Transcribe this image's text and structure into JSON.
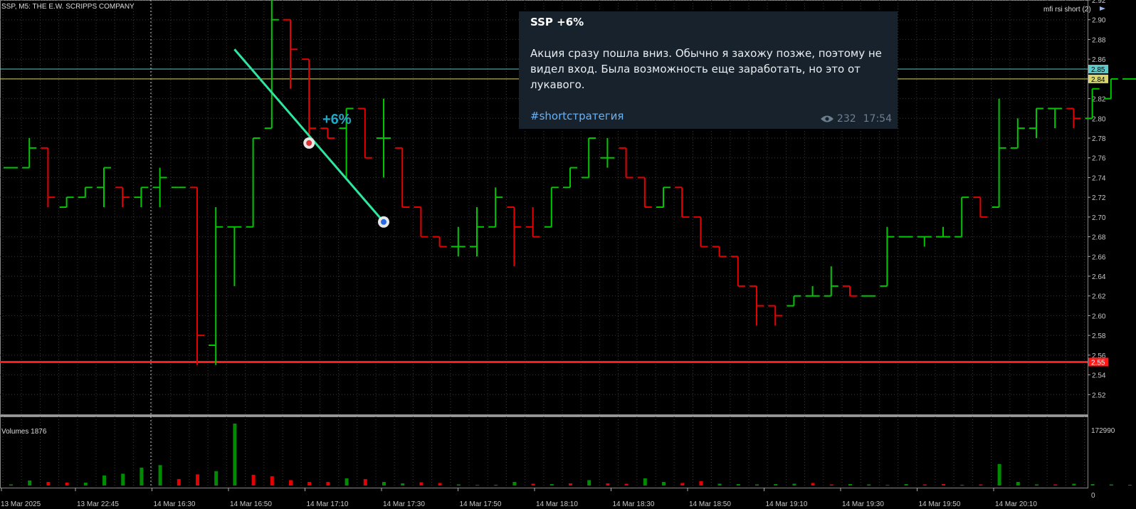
{
  "window": {
    "symbol_label": "SSP, M5:  THE E.W. SCRIPPS COMPANY",
    "indicator_label": "mfi rsi short (2)",
    "volume_label": "Volumes 1876"
  },
  "telegram_post": {
    "title": "SSP +6%",
    "body": "Акция сразу пошла вниз. Обычно я захожу позже, поэтому не видел вход. Была возможность еще заработать, но это от лукавого.",
    "hashtag": "#shortстратегия",
    "views": "232",
    "time": "17:54"
  },
  "chart_annotation": "+6%",
  "colors": {
    "background": "#000000",
    "grid": "#3a3a3a",
    "up_bar": "#00c800",
    "down_bar": "#e60000",
    "trendline": "#2ee6a0",
    "line_cyan": "#5fc8c8",
    "line_yellow": "#d7d770",
    "line_red": "#ff1a1a",
    "axis_text": "#c8c8c8"
  },
  "chart_data": {
    "type": "ohlc",
    "timeframe": "M5",
    "ylim": [
      2.5,
      2.92
    ],
    "yticks": [
      2.52,
      2.54,
      2.56,
      2.58,
      2.6,
      2.62,
      2.64,
      2.66,
      2.68,
      2.7,
      2.72,
      2.74,
      2.76,
      2.78,
      2.8,
      2.82,
      2.84,
      2.86,
      2.88,
      2.9,
      2.92
    ],
    "xticks": [
      "13 Mar 2025",
      "13 Mar 22:45",
      "14 Mar 16:30",
      "14 Mar 16:50",
      "14 Mar 17:10",
      "14 Mar 17:30",
      "14 Mar 17:50",
      "14 Mar 18:10",
      "14 Mar 18:30",
      "14 Mar 18:50",
      "14 Mar 19:10",
      "14 Mar 19:30",
      "14 Mar 19:50",
      "14 Mar 20:10"
    ],
    "price_labels": [
      {
        "value": 2.85,
        "text": "2.85",
        "color": "cyan"
      },
      {
        "value": 2.84,
        "text": "2.84",
        "color": "yellow"
      },
      {
        "value": 2.553,
        "text": "2.55",
        "color": "red"
      }
    ],
    "bars": [
      {
        "o": 2.75,
        "h": 2.75,
        "l": 2.75,
        "c": 2.75
      },
      {
        "o": 2.75,
        "h": 2.78,
        "l": 2.75,
        "c": 2.77
      },
      {
        "o": 2.77,
        "h": 2.77,
        "l": 2.71,
        "c": 2.72
      },
      {
        "o": 2.71,
        "h": 2.72,
        "l": 2.71,
        "c": 2.72
      },
      {
        "o": 2.72,
        "h": 2.73,
        "l": 2.72,
        "c": 2.73
      },
      {
        "o": 2.73,
        "h": 2.75,
        "l": 2.71,
        "c": 2.75
      },
      {
        "o": 2.73,
        "h": 2.73,
        "l": 2.71,
        "c": 2.72
      },
      {
        "o": 2.72,
        "h": 2.73,
        "l": 2.71,
        "c": 2.73
      },
      {
        "o": 2.73,
        "h": 2.75,
        "l": 2.71,
        "c": 2.74
      },
      {
        "o": 2.73,
        "h": 2.73,
        "l": 2.73,
        "c": 2.73
      },
      {
        "o": 2.73,
        "h": 2.73,
        "l": 2.55,
        "c": 2.58
      },
      {
        "o": 2.57,
        "h": 2.71,
        "l": 2.55,
        "c": 2.69
      },
      {
        "o": 2.69,
        "h": 2.69,
        "l": 2.63,
        "c": 2.69
      },
      {
        "o": 2.69,
        "h": 2.78,
        "l": 2.69,
        "c": 2.78
      },
      {
        "o": 2.79,
        "h": 2.92,
        "l": 2.79,
        "c": 2.9
      },
      {
        "o": 2.9,
        "h": 2.9,
        "l": 2.83,
        "c": 2.87
      },
      {
        "o": 2.86,
        "h": 2.86,
        "l": 2.77,
        "c": 2.79
      },
      {
        "o": 2.79,
        "h": 2.79,
        "l": 2.78,
        "c": 2.78
      },
      {
        "o": 2.79,
        "h": 2.81,
        "l": 2.74,
        "c": 2.81
      },
      {
        "o": 2.81,
        "h": 2.81,
        "l": 2.76,
        "c": 2.76
      },
      {
        "o": 2.78,
        "h": 2.82,
        "l": 2.74,
        "c": 2.78
      },
      {
        "o": 2.77,
        "h": 2.77,
        "l": 2.71,
        "c": 2.71
      },
      {
        "o": 2.71,
        "h": 2.71,
        "l": 2.68,
        "c": 2.68
      },
      {
        "o": 2.68,
        "h": 2.68,
        "l": 2.67,
        "c": 2.67
      },
      {
        "o": 2.67,
        "h": 2.69,
        "l": 2.66,
        "c": 2.67
      },
      {
        "o": 2.67,
        "h": 2.71,
        "l": 2.66,
        "c": 2.69
      },
      {
        "o": 2.69,
        "h": 2.73,
        "l": 2.69,
        "c": 2.72
      },
      {
        "o": 2.71,
        "h": 2.71,
        "l": 2.65,
        "c": 2.69
      },
      {
        "o": 2.69,
        "h": 2.71,
        "l": 2.68,
        "c": 2.68
      },
      {
        "o": 2.69,
        "h": 2.73,
        "l": 2.69,
        "c": 2.73
      },
      {
        "o": 2.73,
        "h": 2.75,
        "l": 2.73,
        "c": 2.75
      },
      {
        "o": 2.74,
        "h": 2.78,
        "l": 2.74,
        "c": 2.78
      },
      {
        "o": 2.76,
        "h": 2.78,
        "l": 2.75,
        "c": 2.76
      },
      {
        "o": 2.77,
        "h": 2.77,
        "l": 2.74,
        "c": 2.74
      },
      {
        "o": 2.74,
        "h": 2.74,
        "l": 2.71,
        "c": 2.71
      },
      {
        "o": 2.71,
        "h": 2.73,
        "l": 2.71,
        "c": 2.73
      },
      {
        "o": 2.73,
        "h": 2.73,
        "l": 2.7,
        "c": 2.7
      },
      {
        "o": 2.7,
        "h": 2.7,
        "l": 2.67,
        "c": 2.67
      },
      {
        "o": 2.67,
        "h": 2.67,
        "l": 2.66,
        "c": 2.66
      },
      {
        "o": 2.66,
        "h": 2.66,
        "l": 2.63,
        "c": 2.63
      },
      {
        "o": 2.63,
        "h": 2.63,
        "l": 2.59,
        "c": 2.61
      },
      {
        "o": 2.61,
        "h": 2.61,
        "l": 2.59,
        "c": 2.6
      },
      {
        "o": 2.61,
        "h": 2.62,
        "l": 2.61,
        "c": 2.62
      },
      {
        "o": 2.62,
        "h": 2.63,
        "l": 2.62,
        "c": 2.62
      },
      {
        "o": 2.62,
        "h": 2.65,
        "l": 2.62,
        "c": 2.63
      },
      {
        "o": 2.63,
        "h": 2.63,
        "l": 2.62,
        "c": 2.62
      },
      {
        "o": 2.62,
        "h": 2.62,
        "l": 2.62,
        "c": 2.62
      },
      {
        "o": 2.63,
        "h": 2.69,
        "l": 2.63,
        "c": 2.68
      },
      {
        "o": 2.68,
        "h": 2.68,
        "l": 2.68,
        "c": 2.68
      },
      {
        "o": 2.68,
        "h": 2.68,
        "l": 2.67,
        "c": 2.68
      },
      {
        "o": 2.68,
        "h": 2.69,
        "l": 2.68,
        "c": 2.68
      },
      {
        "o": 2.68,
        "h": 2.72,
        "l": 2.68,
        "c": 2.72
      },
      {
        "o": 2.72,
        "h": 2.72,
        "l": 2.7,
        "c": 2.7
      },
      {
        "o": 2.71,
        "h": 2.82,
        "l": 2.71,
        "c": 2.77
      },
      {
        "o": 2.77,
        "h": 2.8,
        "l": 2.77,
        "c": 2.79
      },
      {
        "o": 2.79,
        "h": 2.81,
        "l": 2.78,
        "c": 2.81
      },
      {
        "o": 2.81,
        "h": 2.81,
        "l": 2.79,
        "c": 2.81
      },
      {
        "o": 2.81,
        "h": 2.81,
        "l": 2.79,
        "c": 2.8
      },
      {
        "o": 2.8,
        "h": 2.83,
        "l": 2.8,
        "c": 2.83
      },
      {
        "o": 2.82,
        "h": 2.84,
        "l": 2.82,
        "c": 2.84
      },
      {
        "o": 2.84,
        "h": 2.84,
        "l": 2.84,
        "c": 2.84
      }
    ],
    "volumes": [
      {
        "v": 3000,
        "up": true
      },
      {
        "v": 14000,
        "up": true
      },
      {
        "v": 10000,
        "up": false
      },
      {
        "v": 8000,
        "up": false
      },
      {
        "v": 8000,
        "up": true
      },
      {
        "v": 28000,
        "up": true
      },
      {
        "v": 33000,
        "up": true
      },
      {
        "v": 50000,
        "up": true
      },
      {
        "v": 57000,
        "up": true
      },
      {
        "v": 18000,
        "up": false
      },
      {
        "v": 31000,
        "up": false
      },
      {
        "v": 40000,
        "up": true
      },
      {
        "v": 172990,
        "up": true
      },
      {
        "v": 30000,
        "up": false
      },
      {
        "v": 26000,
        "up": false
      },
      {
        "v": 15000,
        "up": false
      },
      {
        "v": 10000,
        "up": false
      },
      {
        "v": 10000,
        "up": false
      },
      {
        "v": 20000,
        "up": true
      },
      {
        "v": 18000,
        "up": false
      },
      {
        "v": 10000,
        "up": true
      },
      {
        "v": 6000,
        "up": true
      },
      {
        "v": 9000,
        "up": false
      },
      {
        "v": 7000,
        "up": false
      },
      {
        "v": 3000,
        "up": true
      },
      {
        "v": 2000,
        "up": false
      },
      {
        "v": 2000,
        "up": true
      },
      {
        "v": 10000,
        "up": true
      },
      {
        "v": 5000,
        "up": false
      },
      {
        "v": 4000,
        "up": true
      },
      {
        "v": 6000,
        "up": false
      },
      {
        "v": 15000,
        "up": true
      },
      {
        "v": 6000,
        "up": false
      },
      {
        "v": 5000,
        "up": false
      },
      {
        "v": 20000,
        "up": true
      },
      {
        "v": 10000,
        "up": true
      },
      {
        "v": 7000,
        "up": false
      },
      {
        "v": 12000,
        "up": false
      },
      {
        "v": 5000,
        "up": true
      },
      {
        "v": 4000,
        "up": true
      },
      {
        "v": 3000,
        "up": true
      },
      {
        "v": 4000,
        "up": true
      },
      {
        "v": 5000,
        "up": true
      },
      {
        "v": 7000,
        "up": false
      },
      {
        "v": 3000,
        "up": false
      },
      {
        "v": 4000,
        "up": true
      },
      {
        "v": 3000,
        "up": true
      },
      {
        "v": 2000,
        "up": false
      },
      {
        "v": 4000,
        "up": true
      },
      {
        "v": 3000,
        "up": false
      },
      {
        "v": 4000,
        "up": false
      },
      {
        "v": 2000,
        "up": true
      },
      {
        "v": 3000,
        "up": false
      },
      {
        "v": 60000,
        "up": true
      },
      {
        "v": 10000,
        "up": true
      },
      {
        "v": 3000,
        "up": true
      },
      {
        "v": 3000,
        "up": false
      },
      {
        "v": 5000,
        "up": true
      },
      {
        "v": 4000,
        "up": true
      },
      {
        "v": 3000,
        "up": true
      },
      {
        "v": 2000,
        "up": true
      }
    ],
    "volume_axis": {
      "max_label": "172990",
      "min_label": "0"
    },
    "trendline": {
      "from": {
        "bar": 12,
        "price": 2.87
      },
      "to": {
        "bar": 20,
        "price": 2.695
      }
    },
    "markers": [
      {
        "bar": 16,
        "price": 2.775,
        "kind": "sell"
      },
      {
        "bar": 20,
        "price": 2.695,
        "kind": "buy"
      }
    ]
  }
}
